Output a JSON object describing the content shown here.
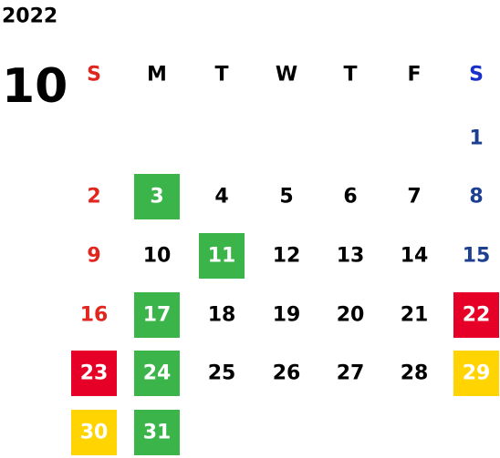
{
  "year": "2022",
  "month": "10",
  "weekdays": [
    "S",
    "M",
    "T",
    "W",
    "T",
    "F",
    "S"
  ],
  "weeks": [
    [
      null,
      null,
      null,
      null,
      null,
      null,
      1
    ],
    [
      2,
      {
        "day": 3,
        "color": "#3bb54a"
      },
      4,
      5,
      6,
      7,
      8
    ],
    [
      9,
      10,
      {
        "day": 11,
        "color": "#3bb54a"
      },
      12,
      13,
      14,
      15
    ],
    [
      16,
      {
        "day": 17,
        "color": "#3bb54a"
      },
      18,
      19,
      20,
      21,
      {
        "day": 22,
        "color": "#e60027"
      }
    ],
    [
      {
        "day": 23,
        "color": "#e60027"
      },
      {
        "day": 24,
        "color": "#3bb54a"
      },
      25,
      26,
      27,
      28,
      {
        "day": 29,
        "color": "#ffd400"
      }
    ],
    [
      {
        "day": 30,
        "color": "#ffd400"
      },
      {
        "day": 31,
        "color": "#3bb54a"
      }
    ]
  ]
}
